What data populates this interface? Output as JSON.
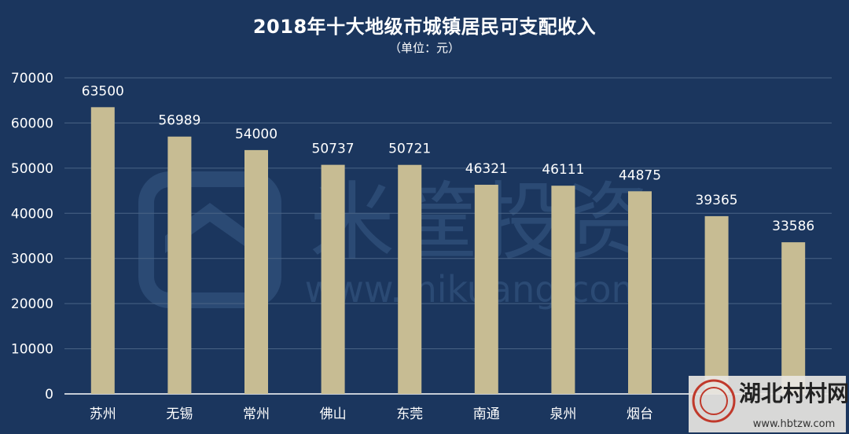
{
  "colors": {
    "background": "#1b365e",
    "bar": "#c7bc93",
    "grid": "#4a6486",
    "text": "#ffffff"
  },
  "watermark": {
    "brand": "米筐投资",
    "url": "www.mikuang.com"
  },
  "stamp": {
    "text": "湖北村村网",
    "url": "www.hbtzw.com"
  },
  "chart_data": {
    "type": "bar",
    "title": "2018年十大地级市城镇居民可支配收入",
    "subtitle": "（单位：元）",
    "categories": [
      "苏州",
      "无锡",
      "常州",
      "佛山",
      "东莞",
      "南通",
      "泉州",
      "烟台",
      "",
      ""
    ],
    "values": [
      63500,
      56989,
      54000,
      50737,
      50721,
      46321,
      46111,
      44875,
      39365,
      33586
    ],
    "yticks": [
      0,
      10000,
      20000,
      30000,
      40000,
      50000,
      60000,
      70000
    ],
    "ylim": [
      0,
      70000
    ],
    "grid": true,
    "legend": "none"
  }
}
